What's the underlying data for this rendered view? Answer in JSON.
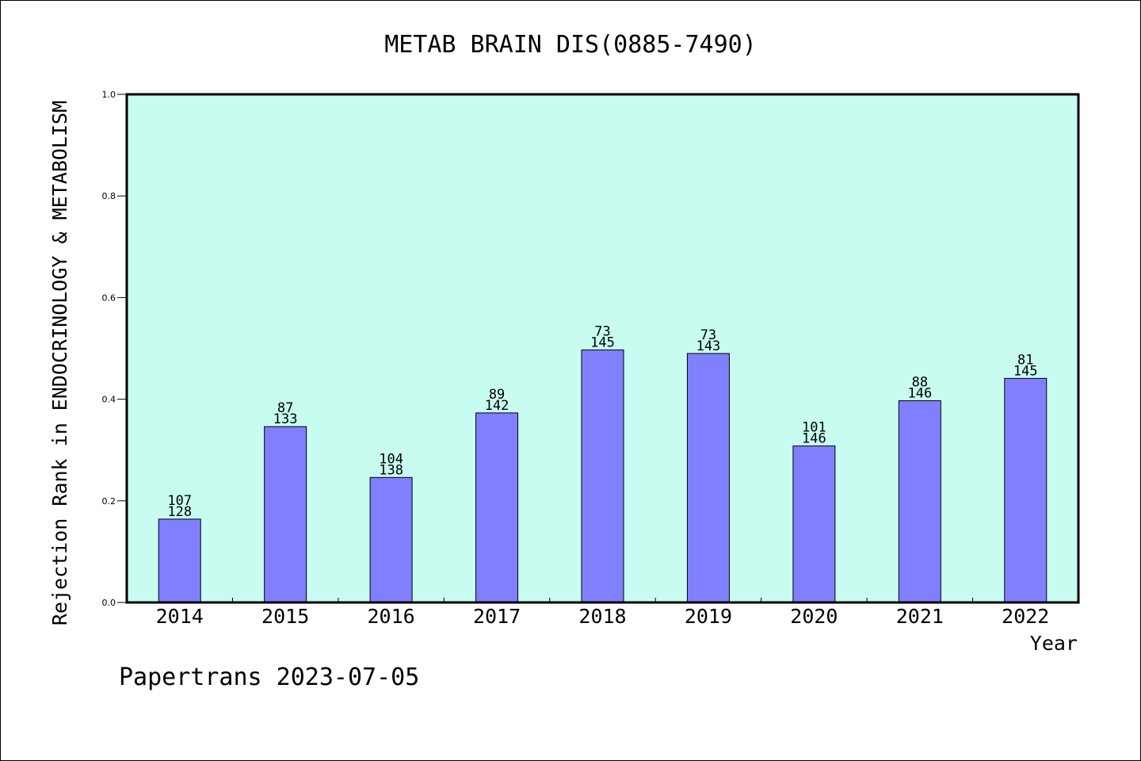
{
  "chart_data": {
    "type": "bar",
    "title": "METAB BRAIN DIS(0885-7490)",
    "xlabel": "Year",
    "ylabel": "Rejection Rank in ENDOCRINOLOGY & METABOLISM",
    "ylim": [
      0,
      1.0
    ],
    "yticks": [
      "0.0",
      "0.2",
      "0.4",
      "0.6",
      "0.8",
      "1.0"
    ],
    "categories": [
      "2014",
      "2015",
      "2016",
      "2017",
      "2018",
      "2019",
      "2020",
      "2021",
      "2022"
    ],
    "values": [
      0.164,
      0.346,
      0.246,
      0.373,
      0.497,
      0.49,
      0.308,
      0.397,
      0.441
    ],
    "labels_top": [
      "107",
      "87",
      "104",
      "89",
      "73",
      "73",
      "101",
      "88",
      "81"
    ],
    "labels_bottom": [
      "128",
      "133",
      "138",
      "142",
      "145",
      "143",
      "146",
      "146",
      "145"
    ],
    "colors": {
      "plot_background": "#c8fcf0",
      "bar_fill": "#8080ff",
      "bar_stroke": "#000000"
    },
    "grid": false,
    "legend": "none"
  },
  "footer": "Papertrans 2023-07-05"
}
